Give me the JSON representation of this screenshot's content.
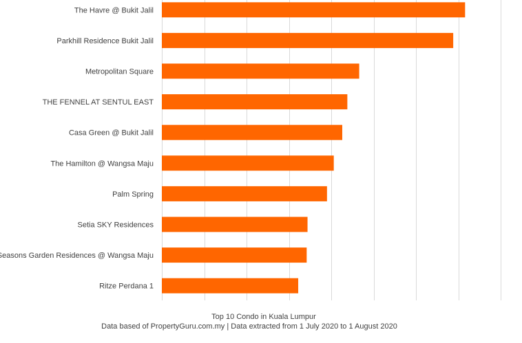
{
  "chart_data": {
    "type": "bar",
    "orientation": "horizontal",
    "categories": [
      "The Havre @ Bukit Jalil",
      "Parkhill Residence Bukit Jalil",
      "Metropolitan Square",
      "THE FENNEL AT SENTUL EAST",
      "Casa Green @ Bukit Jalil",
      "The Hamilton @ Wangsa Maju",
      "Palm Spring",
      "Setia SKY Residences",
      "Seasons Garden Residences @ Wangsa Maju",
      "Ritze Perdana 1"
    ],
    "values": [
      358,
      344,
      233,
      219,
      213,
      203,
      195,
      172,
      171,
      161
    ],
    "xlim": [
      0,
      400
    ],
    "title": "Top 10 Condo in Kuala Lumpur",
    "subtitle": "Data based of PropertyGuru.com.my | Data extracted from 1 July 2020 to 1 August 2020",
    "bar_color": "#ff6600",
    "grid": true,
    "legend": "none"
  }
}
